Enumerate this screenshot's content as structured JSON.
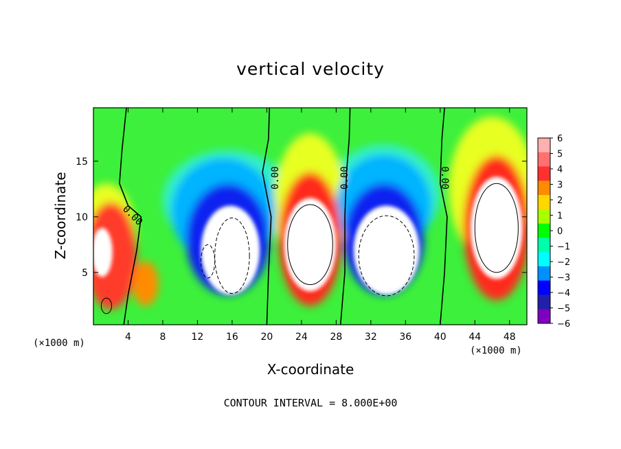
{
  "chart_data": {
    "type": "heatmap",
    "title": "vertical velocity",
    "xlabel": "X-coordinate",
    "ylabel": "Z-coordinate",
    "x_unit_left": "(×1000 m)",
    "x_unit_right": "(×1000 m)",
    "footer": "CONTOUR INTERVAL = 8.000E+00",
    "xlim": [
      0,
      50
    ],
    "ylim": [
      0.3,
      19.8
    ],
    "x_ticks": [
      4,
      8,
      12,
      16,
      20,
      24,
      28,
      32,
      36,
      40,
      44,
      48
    ],
    "y_ticks": [
      5,
      10,
      15
    ],
    "colorbar_ticks": [
      6,
      5,
      4,
      3,
      2,
      1,
      0,
      -1,
      -2,
      -3,
      -4,
      -5,
      -6
    ],
    "colorbar_range": [
      -6,
      6
    ],
    "colorbar_colors": [
      "#ffb0b0",
      "#ff7070",
      "#ff3030",
      "#ff8c00",
      "#ffd700",
      "#aaff00",
      "#00ff00",
      "#00ffaa",
      "#00ffff",
      "#0090ff",
      "#0000ff",
      "#2020aa",
      "#8000c0"
    ],
    "contour_labels": [
      "0.00",
      "0.00",
      "0.00",
      "0.00"
    ],
    "features": [
      {
        "label": "updraft",
        "x": 1.5,
        "z": 7.0,
        "peak": 6
      },
      {
        "label": "downdraft",
        "x": 15.5,
        "z": 6.5,
        "peak": -6
      },
      {
        "label": "updraft",
        "x": 25.0,
        "z": 7.5,
        "peak": 6
      },
      {
        "label": "downdraft",
        "x": 33.5,
        "z": 7.0,
        "peak": -6
      },
      {
        "label": "updraft",
        "x": 46.0,
        "z": 9.0,
        "peak": 6
      }
    ]
  }
}
